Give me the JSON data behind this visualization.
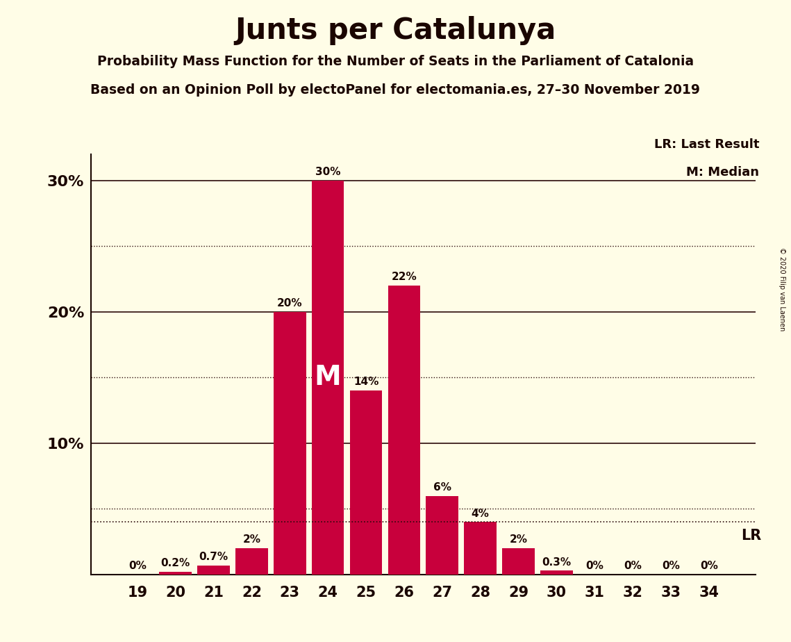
{
  "title": "Junts per Catalunya",
  "subtitle1": "Probability Mass Function for the Number of Seats in the Parliament of Catalonia",
  "subtitle2": "Based on an Opinion Poll by electoPanel for electomania.es, 27–30 November 2019",
  "copyright": "© 2020 Filip van Laenen",
  "seats": [
    19,
    20,
    21,
    22,
    23,
    24,
    25,
    26,
    27,
    28,
    29,
    30,
    31,
    32,
    33,
    34
  ],
  "probs": [
    0.0,
    0.2,
    0.7,
    2.0,
    20.0,
    30.0,
    14.0,
    22.0,
    6.0,
    4.0,
    2.0,
    0.3,
    0.0,
    0.0,
    0.0,
    0.0
  ],
  "bar_color": "#C8003C",
  "background_color": "#FFFDE7",
  "label_color": "#1a0500",
  "lr_value": 4.0,
  "median_seat": 24,
  "median_label": "M",
  "ylim": [
    0,
    32
  ],
  "yticks_solid": [
    10,
    20,
    30
  ],
  "ytick_labels_solid": [
    "10%",
    "20%",
    "30%"
  ],
  "yticks_dotted": [
    5,
    15,
    25
  ],
  "lr_line_color": "#2b0a0a",
  "legend_lr": "LR: Last Result",
  "legend_m": "M: Median"
}
